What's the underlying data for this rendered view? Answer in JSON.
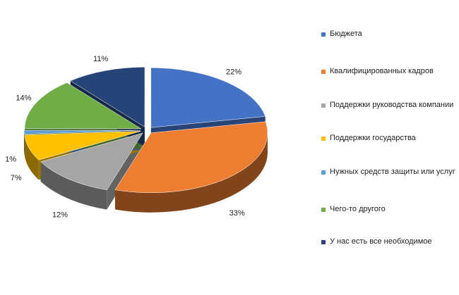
{
  "chart_data": {
    "type": "pie",
    "categories": [
      "Бюджета",
      "Квалифицированных кадров",
      "Поддержки руководства компании",
      "Поддержки государства",
      "Нужных средств защиты или услуг",
      "Чего-то другого",
      "У нас есть все необходимое"
    ],
    "values": [
      22,
      33,
      12,
      7,
      1,
      14,
      11
    ],
    "value_labels": [
      "22%",
      "33%",
      "12%",
      "7%",
      "1%",
      "14%",
      "11%"
    ],
    "colors": [
      "#4472c4",
      "#ed7d31",
      "#a5a5a5",
      "#ffc000",
      "#5b9bd5",
      "#70ad47",
      "#264478"
    ]
  }
}
